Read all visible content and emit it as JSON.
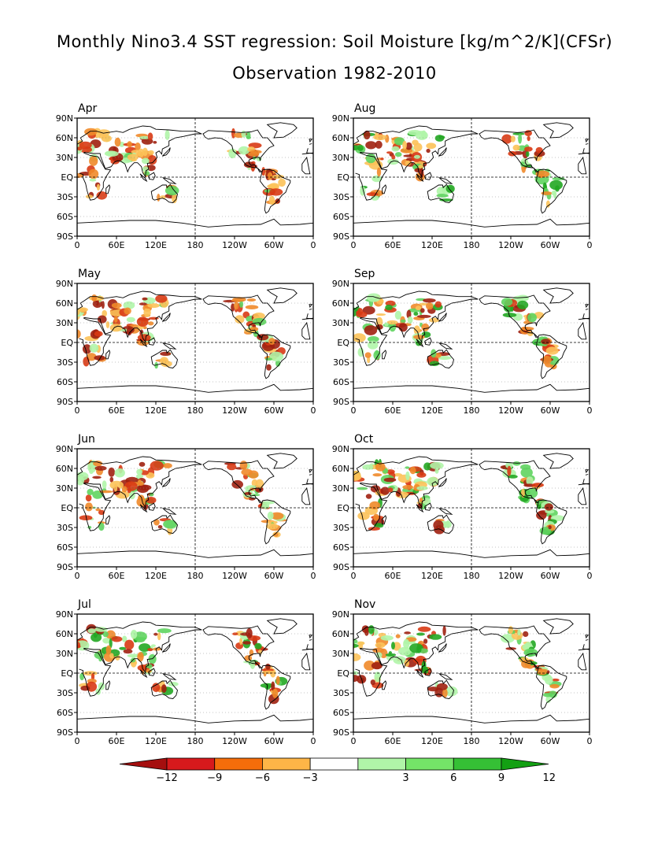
{
  "title": {
    "line1": "Monthly Nino3.4 SST regression: Soil Moisture [kg/m^2/K](CFSr)",
    "line2": "Observation 1982-2010"
  },
  "panels": [
    {
      "month": "Apr"
    },
    {
      "month": "Aug"
    },
    {
      "month": "May"
    },
    {
      "month": "Sep"
    },
    {
      "month": "Jun"
    },
    {
      "month": "Oct"
    },
    {
      "month": "Jul"
    },
    {
      "month": "Nov"
    }
  ],
  "axes": {
    "lat_labels": [
      "90N",
      "60N",
      "30N",
      "EQ",
      "30S",
      "60S",
      "90S"
    ],
    "lon_labels": [
      "0",
      "60E",
      "120E",
      "180",
      "120W",
      "60W",
      "0"
    ]
  },
  "colorbar": {
    "tick_labels": [
      "-12",
      "-9",
      "-6",
      "-3",
      "3",
      "6",
      "9",
      "12"
    ],
    "colors": [
      "#a50f0f",
      "#d7191c",
      "#f46d0a",
      "#fdb547",
      "#ffffff",
      "#b0f5a8",
      "#74e468",
      "#35c035",
      "#13a013"
    ]
  },
  "palette": {
    "dry_strong": "#a02010",
    "dry": "#d83a14",
    "dry_mild": "#f08a2a",
    "dry_weak": "#fcc259",
    "wet_weak": "#b0f5a8",
    "wet": "#5fd45f",
    "wet_strong": "#22a722"
  }
}
